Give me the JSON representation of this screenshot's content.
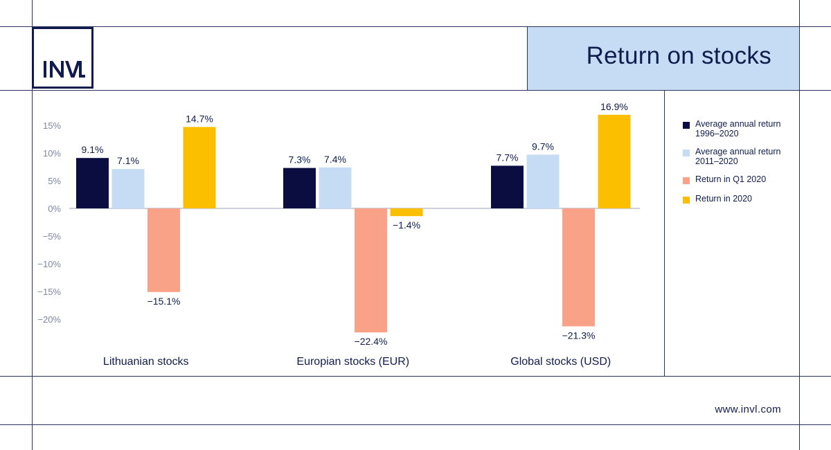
{
  "brand": {
    "logo_text": "INVL",
    "website": "www.invl.com"
  },
  "header": {
    "title": "Return on stocks"
  },
  "colors": {
    "navy": "#0b0c3f",
    "light_blue": "#c5dcf4",
    "salmon": "#f9a287",
    "yellow": "#fbbf00",
    "text": "#0f1c4d"
  },
  "chart_data": {
    "type": "bar",
    "title": "Return on stocks",
    "categories": [
      "Lithuanian stocks",
      "Europian stocks (EUR)",
      "Global stocks (USD)"
    ],
    "series": [
      {
        "name": "Average annual return 1996–2020",
        "color": "#0b0c3f",
        "values": [
          9.1,
          7.3,
          7.7
        ],
        "labels": [
          "9.1%",
          "7.3%",
          "7.7%"
        ]
      },
      {
        "name": "Average annual return 2011–2020",
        "color": "#c5dcf4",
        "values": [
          7.1,
          7.4,
          9.7
        ],
        "labels": [
          "7.1%",
          "7.4%",
          "9.7%"
        ]
      },
      {
        "name": "Return in Q1 2020",
        "color": "#f9a287",
        "values": [
          -15.1,
          -22.4,
          -21.3
        ],
        "labels": [
          "−15.1%",
          "−22.4%",
          "−21.3%"
        ]
      },
      {
        "name": "Return in 2020",
        "color": "#fbbf00",
        "values": [
          14.7,
          -1.4,
          16.9
        ],
        "labels": [
          "14.7%",
          "−1.4%",
          "16.9%"
        ]
      }
    ],
    "yticks": [
      15,
      10,
      5,
      0,
      -5,
      -10,
      -15,
      -20
    ],
    "ytick_labels": [
      "15%",
      "10%",
      "5%",
      "0%",
      "−5%",
      "−10%",
      "−15%",
      "−20%"
    ],
    "ylim": [
      -22.4,
      16.9
    ],
    "grid": false,
    "legend_position": "right"
  }
}
